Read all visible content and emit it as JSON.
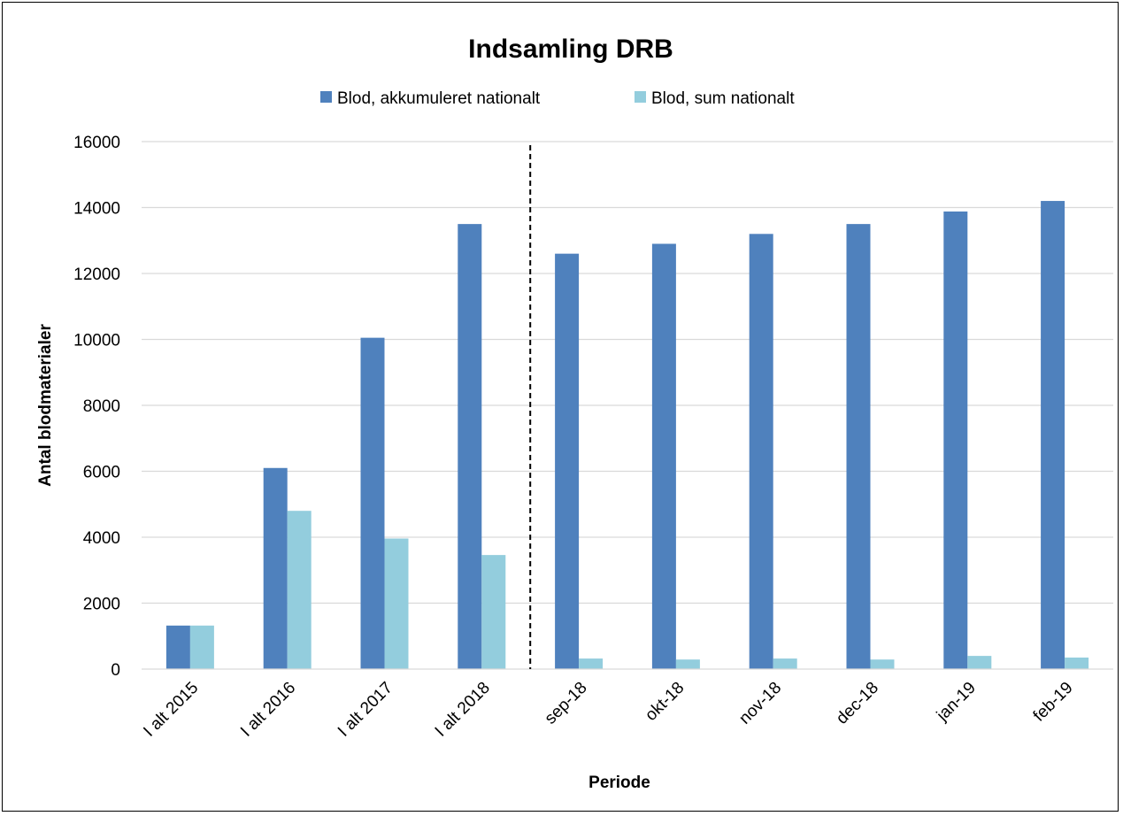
{
  "chart_data": {
    "type": "bar",
    "title": "Indsamling DRB",
    "xlabel": "Periode",
    "ylabel": "Antal blodmaterialer",
    "ylim": [
      0,
      16000
    ],
    "yticks": [
      "0",
      "2000",
      "4000",
      "6000",
      "8000",
      "10000",
      "12000",
      "14000",
      "16000"
    ],
    "categories": [
      "I alt 2015",
      "I alt 2016",
      "I alt  2017",
      "I alt 2018",
      "sep-18",
      "okt-18",
      "nov-18",
      "dec-18",
      "jan-19",
      "feb-19"
    ],
    "series": [
      {
        "name": "Blod, akkumuleret nationalt",
        "color": "#4F81BD",
        "values": [
          1320,
          6100,
          10050,
          13500,
          12600,
          12900,
          13200,
          13500,
          13880,
          14200
        ]
      },
      {
        "name": "Blod, sum nationalt",
        "color": "#93CDDD",
        "values": [
          1320,
          4800,
          3960,
          3460,
          320,
          290,
          320,
          290,
          400,
          350
        ]
      }
    ],
    "grid": true,
    "legend_position": "top",
    "divider_after_category": 3
  }
}
